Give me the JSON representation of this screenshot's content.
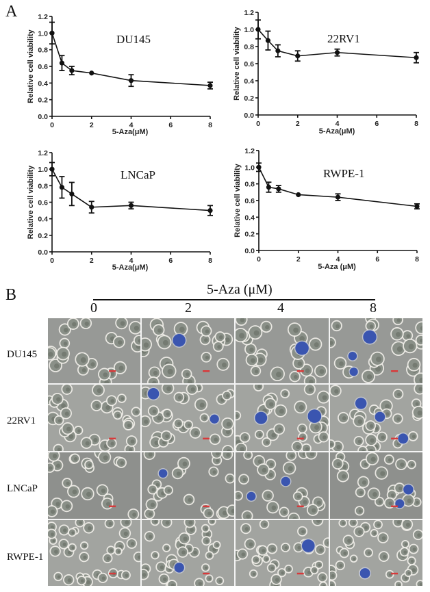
{
  "figure": {
    "panel_a_label": "A",
    "panel_b_label": "B"
  },
  "chart_data": [
    {
      "type": "line",
      "title": "DU145",
      "xlabel": "5-Aza(μM)",
      "ylabel": "Relative cell viability",
      "x": [
        0,
        0.5,
        1,
        2,
        4,
        8
      ],
      "series": [
        {
          "name": "DU145",
          "values": [
            1.0,
            0.64,
            0.55,
            0.52,
            0.43,
            0.37
          ],
          "error": [
            0.13,
            0.09,
            0.05,
            0.01,
            0.07,
            0.04
          ]
        }
      ],
      "xlim": [
        0,
        8
      ],
      "ylim": [
        0,
        1.2
      ],
      "xticks": [
        "0",
        "2",
        "4",
        "6",
        "8"
      ],
      "yticks": [
        "0.0",
        "0.2",
        "0.4",
        "0.6",
        "0.8",
        "1.0",
        "1.2"
      ],
      "grid": false,
      "legend": "none"
    },
    {
      "type": "line",
      "title": "22RV1",
      "xlabel": "5-Aza(μM)",
      "ylabel": "Relative cell viability",
      "x": [
        0,
        0.5,
        1,
        2,
        4,
        8
      ],
      "series": [
        {
          "name": "22RV1",
          "values": [
            1.0,
            0.87,
            0.75,
            0.69,
            0.73,
            0.67
          ],
          "error": [
            0.11,
            0.11,
            0.07,
            0.06,
            0.04,
            0.06
          ]
        }
      ],
      "xlim": [
        0,
        8
      ],
      "ylim": [
        0,
        1.2
      ],
      "xticks": [
        "0",
        "2",
        "4",
        "6",
        "8"
      ],
      "yticks": [
        "0.0",
        "0.2",
        "0.4",
        "0.6",
        "0.8",
        "1.0",
        "1.2"
      ],
      "grid": false,
      "legend": "none"
    },
    {
      "type": "line",
      "title": "LNCaP",
      "xlabel": "5-Aza(μM)",
      "ylabel": "Relative cell viability",
      "x": [
        0,
        0.5,
        1,
        2,
        4,
        8
      ],
      "series": [
        {
          "name": "LNCaP",
          "values": [
            1.0,
            0.78,
            0.7,
            0.54,
            0.56,
            0.5
          ],
          "error": [
            0.08,
            0.13,
            0.14,
            0.07,
            0.04,
            0.06
          ]
        }
      ],
      "xlim": [
        0,
        8
      ],
      "ylim": [
        0,
        1.2
      ],
      "xticks": [
        "0",
        "2",
        "4",
        "6",
        "8"
      ],
      "yticks": [
        "0.0",
        "0.2",
        "0.4",
        "0.6",
        "0.8",
        "1.0",
        "1.2"
      ],
      "grid": false,
      "legend": "none"
    },
    {
      "type": "line",
      "title": "RWPE-1",
      "xlabel": "5-Aza (μM)",
      "ylabel": "Relative cell viability",
      "x": [
        0,
        0.5,
        1,
        2,
        4,
        8
      ],
      "series": [
        {
          "name": "RWPE-1",
          "values": [
            1.0,
            0.76,
            0.74,
            0.67,
            0.64,
            0.53
          ],
          "error": [
            0.05,
            0.06,
            0.04,
            0.01,
            0.04,
            0.03
          ]
        }
      ],
      "xlim": [
        0,
        8
      ],
      "ylim": [
        0,
        1.2
      ],
      "xticks": [
        "0",
        "2",
        "4",
        "6",
        "8"
      ],
      "yticks": [
        "0.0",
        "0.2",
        "0.4",
        "0.6",
        "0.8",
        "1.0",
        "1.2"
      ],
      "grid": false,
      "legend": "none"
    }
  ],
  "panel_b": {
    "header": "5-Aza (μM)",
    "concentrations": [
      "0",
      "2",
      "4",
      "8"
    ],
    "cell_lines": [
      "DU145",
      "22RV1",
      "LNCaP",
      "RWPE-1"
    ],
    "blue_cells_per_image": [
      [
        0,
        1,
        1,
        3
      ],
      [
        0,
        2,
        2,
        3
      ],
      [
        0,
        1,
        2,
        2
      ],
      [
        0,
        1,
        1,
        1
      ]
    ]
  },
  "colors": {
    "line": "#111111",
    "micro_bg": "#9b9d99",
    "cell_halo": "#f2f0ea",
    "cell_body": "#8a9088",
    "blue_stain": "#3a55b0",
    "scale_bar": "#d8393a"
  }
}
